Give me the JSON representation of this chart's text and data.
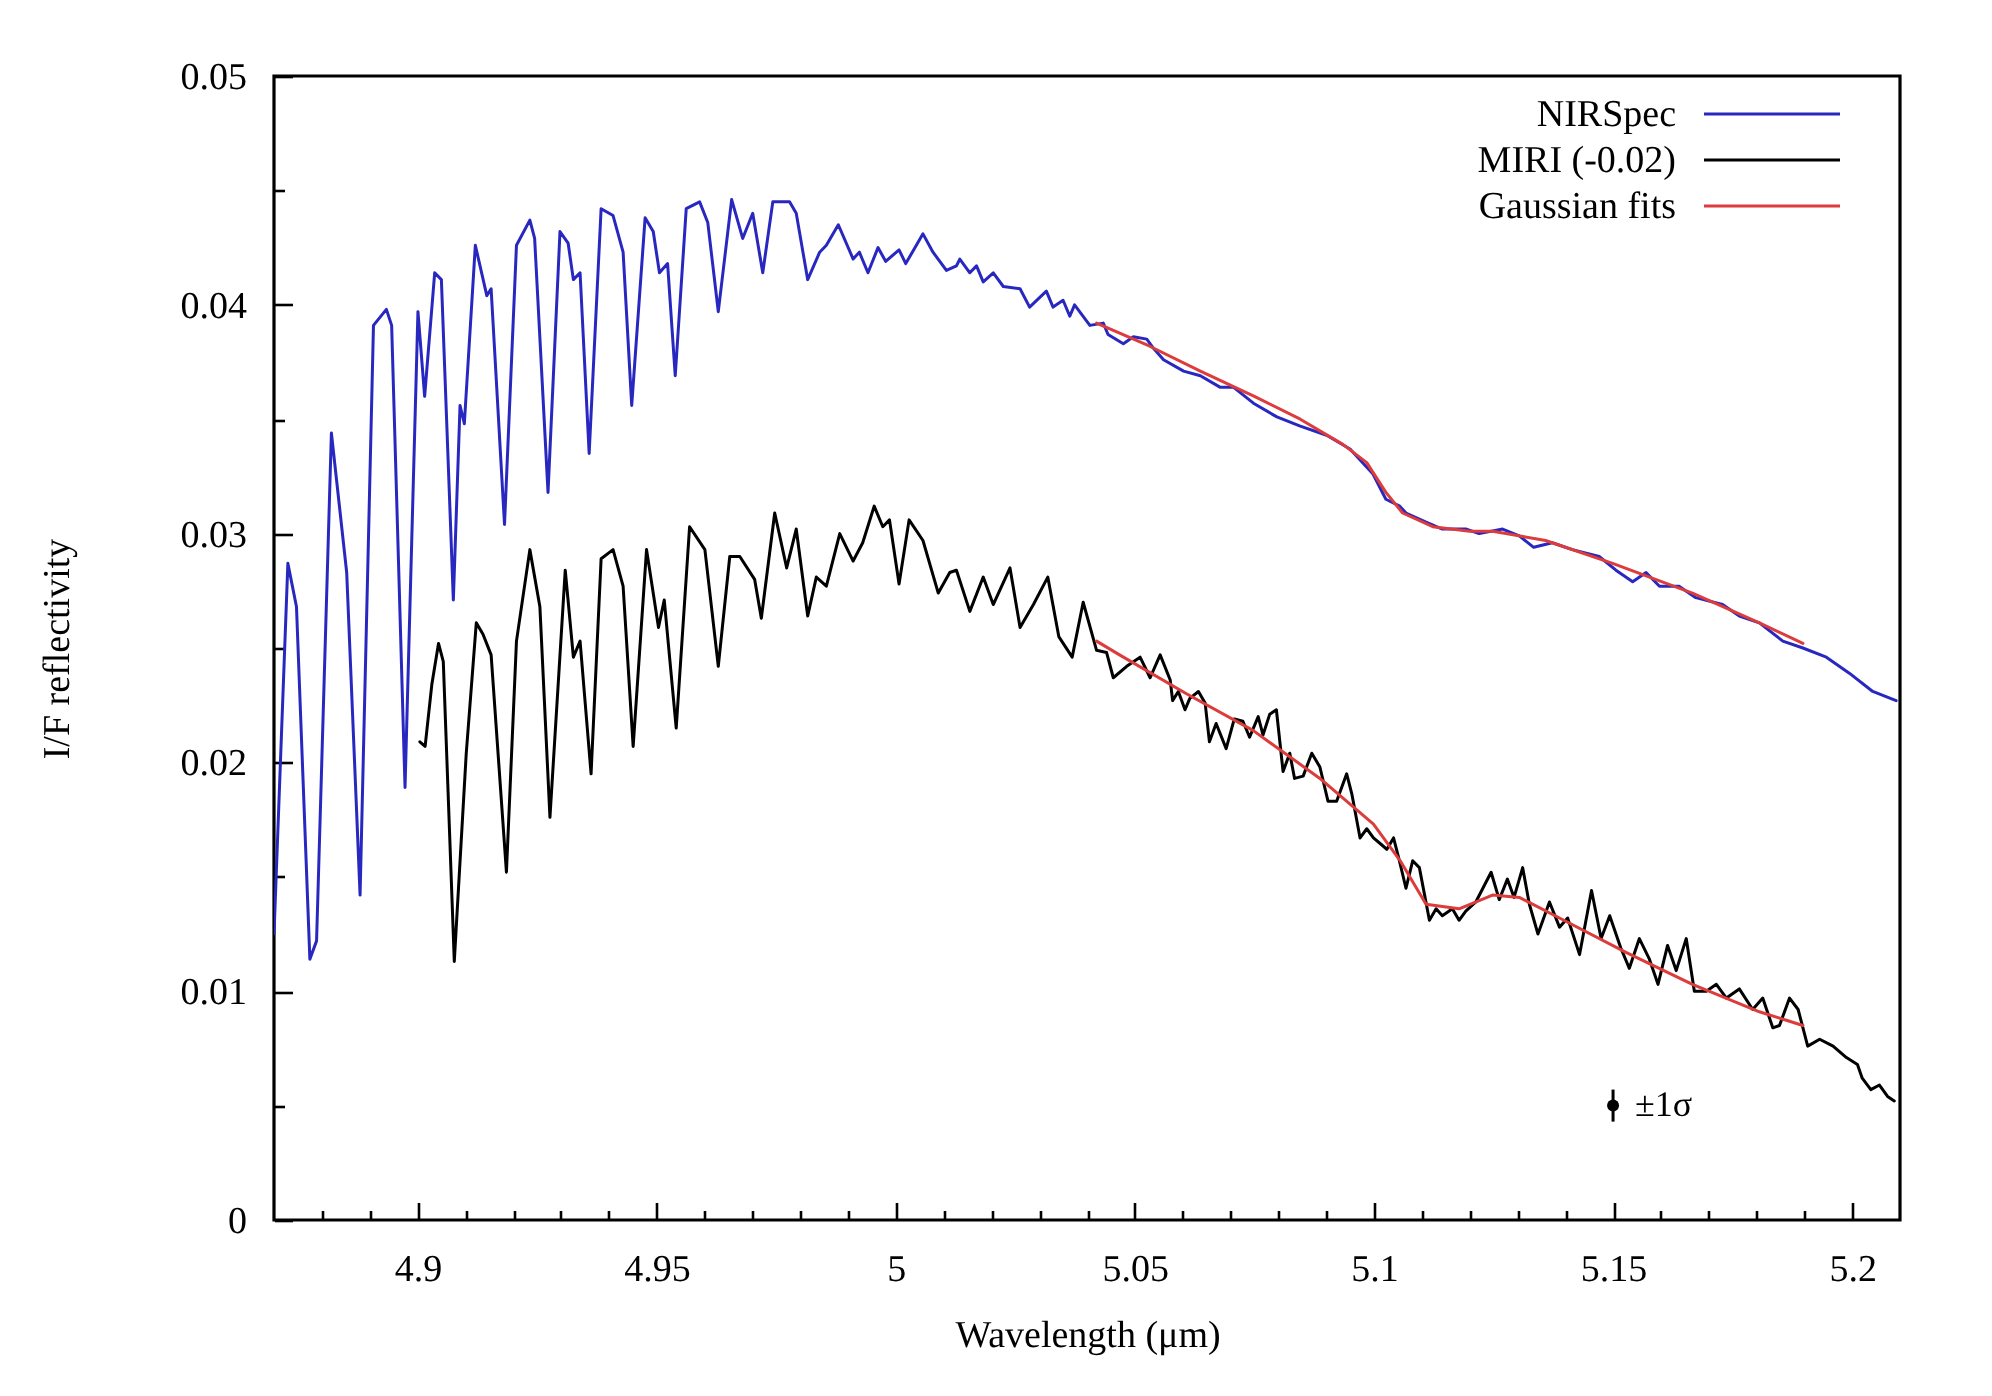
{
  "chart_data": {
    "type": "line",
    "xlabel": "Wavelength (μm)",
    "ylabel": "I/F reflectivity",
    "legend": "top right",
    "xlim": [
      4.87,
      5.21
    ],
    "ylim": [
      0,
      0.05
    ],
    "xticks": [
      {
        "value": 4.88,
        "label": null
      },
      {
        "value": 4.89,
        "label": null
      },
      4.9,
      {
        "value": 4.91,
        "label": null
      },
      {
        "value": 4.92,
        "label": null
      },
      {
        "value": 4.93,
        "label": null
      },
      {
        "value": 4.94,
        "label": null
      },
      4.95,
      {
        "value": 4.96,
        "label": null
      },
      {
        "value": 4.97,
        "label": null
      },
      {
        "value": 4.98,
        "label": null
      },
      {
        "value": 4.99,
        "label": null
      },
      5,
      {
        "value": 5.01,
        "label": null
      },
      {
        "value": 5.02,
        "label": null
      },
      {
        "value": 5.03,
        "label": null
      },
      {
        "value": 5.04,
        "label": null
      },
      5.05,
      {
        "value": 5.06,
        "label": null
      },
      {
        "value": 5.07,
        "label": null
      },
      {
        "value": 5.08,
        "label": null
      },
      {
        "value": 5.09,
        "label": null
      },
      5.1,
      {
        "value": 5.11,
        "label": null
      },
      {
        "value": 5.12,
        "label": null
      },
      {
        "value": 5.13,
        "label": null
      },
      {
        "value": 5.14,
        "label": null
      },
      5.15,
      {
        "value": 5.16,
        "label": null
      },
      {
        "value": 5.17,
        "label": null
      },
      {
        "value": 5.18,
        "label": null
      },
      {
        "value": 5.19,
        "label": null
      },
      5.2
    ],
    "yticks": [
      0,
      {
        "value": 0.005,
        "label": null
      },
      0.01,
      {
        "value": 0.015,
        "label": null
      },
      0.02,
      {
        "value": 0.025,
        "label": null
      },
      0.03,
      {
        "value": 0.035,
        "label": null
      },
      0.04,
      {
        "value": 0.045,
        "label": null
      },
      0.05
    ],
    "series": [
      {
        "name": "NIRSpec",
        "color": "#2828c0",
        "x": [
          4.87,
          4.8729,
          4.8747,
          4.8775,
          4.8789,
          4.882,
          4.8852,
          4.888,
          4.8908,
          4.8935,
          4.8946,
          4.8974,
          4.9001,
          4.9015,
          4.9036,
          4.905,
          4.9075,
          4.9089,
          4.9098,
          4.9121,
          4.9145,
          4.9154,
          4.9182,
          4.9207,
          4.9235,
          4.9245,
          4.9273,
          4.9298,
          4.9315,
          4.9326,
          4.934,
          4.9359,
          4.9384,
          4.9409,
          4.943,
          4.9448,
          4.9476,
          4.9493,
          4.9506,
          4.9523,
          4.9539,
          4.9562,
          4.959,
          4.9607,
          4.9629,
          4.9657,
          4.968,
          4.9701,
          4.9722,
          4.9743,
          4.9778,
          4.9792,
          4.9816,
          4.9841,
          4.9855,
          4.988,
          4.9911,
          4.9924,
          4.9942,
          4.9963,
          4.9979,
          5.0007,
          5.0021,
          5.0057,
          5.0078,
          5.0106,
          5.0127,
          5.0134,
          5.0155,
          5.0169,
          5.0183,
          5.0204,
          5.0225,
          5.026,
          5.028,
          5.0315,
          5.0329,
          5.035,
          5.0364,
          5.0374,
          5.0406,
          5.0434,
          5.0444,
          5.0476,
          5.0497,
          5.0525,
          5.0539,
          5.056,
          5.0602,
          5.0637,
          5.0678,
          5.0706,
          5.0748,
          5.0797,
          5.0846,
          5.0901,
          5.095,
          5.0998,
          5.1025,
          5.1054,
          5.1067,
          5.1109,
          5.1143,
          5.1192,
          5.122,
          5.1269,
          5.1304,
          5.1334,
          5.1373,
          5.1415,
          5.1471,
          5.1506,
          5.1541,
          5.1569,
          5.1597,
          5.1638,
          5.1673,
          5.1729,
          5.1764,
          5.1806,
          5.1855,
          5.1897,
          5.1946,
          5.1994,
          5.2043,
          5.2092
        ],
        "values": [
          0.0125,
          0.0287,
          0.0268,
          0.0114,
          0.0122,
          0.0344,
          0.0283,
          0.0142,
          0.0391,
          0.0398,
          0.0391,
          0.0189,
          0.0397,
          0.036,
          0.0414,
          0.0411,
          0.0271,
          0.0356,
          0.0348,
          0.0426,
          0.0404,
          0.0407,
          0.0304,
          0.0426,
          0.0437,
          0.0429,
          0.0318,
          0.0432,
          0.0427,
          0.0411,
          0.0414,
          0.0335,
          0.0442,
          0.0439,
          0.0423,
          0.0356,
          0.0438,
          0.0432,
          0.0414,
          0.0418,
          0.0369,
          0.0442,
          0.0445,
          0.0436,
          0.0397,
          0.0446,
          0.0429,
          0.044,
          0.0414,
          0.0445,
          0.0445,
          0.044,
          0.0411,
          0.0423,
          0.0426,
          0.0435,
          0.042,
          0.0423,
          0.0414,
          0.0425,
          0.0419,
          0.0424,
          0.0418,
          0.0431,
          0.0423,
          0.0415,
          0.0417,
          0.042,
          0.0414,
          0.0417,
          0.041,
          0.0414,
          0.0408,
          0.0407,
          0.0399,
          0.0406,
          0.0399,
          0.0402,
          0.0395,
          0.04,
          0.0391,
          0.0392,
          0.0387,
          0.0383,
          0.0386,
          0.0385,
          0.0381,
          0.0376,
          0.0371,
          0.0369,
          0.0364,
          0.0364,
          0.0357,
          0.0351,
          0.0347,
          0.0343,
          0.0337,
          0.0326,
          0.0315,
          0.0312,
          0.0309,
          0.0305,
          0.0302,
          0.0302,
          0.03,
          0.0302,
          0.0299,
          0.0294,
          0.0296,
          0.0293,
          0.029,
          0.0284,
          0.0279,
          0.0283,
          0.0277,
          0.0277,
          0.0272,
          0.0269,
          0.0264,
          0.0261,
          0.0253,
          0.025,
          0.0246,
          0.0239,
          0.0231,
          0.0227
        ]
      },
      {
        "name": "MIRI (-0.02)",
        "color": "#000000",
        "x": [
          4.9005,
          4.9016,
          4.903,
          4.9044,
          4.9054,
          4.9077,
          4.9102,
          4.9123,
          4.9137,
          4.9154,
          4.9186,
          4.9207,
          4.9235,
          4.9256,
          4.9277,
          4.9309,
          4.9326,
          4.934,
          4.9363,
          4.9384,
          4.9409,
          4.943,
          4.9451,
          4.9479,
          4.9504,
          4.9516,
          4.9541,
          4.9569,
          4.9601,
          4.9629,
          4.9653,
          4.9674,
          4.9705,
          4.9719,
          4.9747,
          4.9772,
          4.9792,
          4.9816,
          4.9834,
          4.9855,
          4.9883,
          4.9911,
          4.9931,
          4.9955,
          4.9973,
          4.9987,
          5.0007,
          5.0028,
          5.0057,
          5.0089,
          5.0113,
          5.0127,
          5.0155,
          5.0183,
          5.0204,
          5.0239,
          5.026,
          5.0288,
          5.0318,
          5.0341,
          5.0369,
          5.0392,
          5.042,
          5.0441,
          5.0455,
          5.0483,
          5.0511,
          5.0532,
          5.0553,
          5.0574,
          5.0579,
          5.0591,
          5.0605,
          5.0615,
          5.0633,
          5.0647,
          5.0656,
          5.067,
          5.0691,
          5.0708,
          5.0726,
          5.074,
          5.0758,
          5.0768,
          5.0782,
          5.0796,
          5.081,
          5.0824,
          5.0834,
          5.0852,
          5.087,
          5.0887,
          5.0904,
          5.0922,
          5.0943,
          5.0954,
          5.0971,
          5.0985,
          5.0999,
          5.1016,
          5.1027,
          5.1041,
          5.1052,
          5.1067,
          5.1081,
          5.1095,
          5.1116,
          5.113,
          5.1143,
          5.1164,
          5.1178,
          5.1192,
          5.1213,
          5.1245,
          5.1262,
          5.1279,
          5.1293,
          5.1311,
          5.1325,
          5.1343,
          5.1367,
          5.1388,
          5.1405,
          5.143,
          5.1455,
          5.1475,
          5.1493,
          5.1516,
          5.1534,
          5.1555,
          5.1576,
          5.1594,
          5.1614,
          5.1632,
          5.1653,
          5.167,
          5.1695,
          5.1716,
          5.1737,
          5.1764,
          5.1792,
          5.1813,
          5.1834,
          5.1848,
          5.1869,
          5.1887,
          5.1907,
          5.1932,
          5.196,
          5.1988,
          5.2011,
          5.2021,
          5.2039,
          5.2057,
          5.2074,
          5.2088
        ],
        "values": [
          0.0209,
          0.0207,
          0.0234,
          0.0252,
          0.0244,
          0.0113,
          0.0204,
          0.0261,
          0.0256,
          0.0247,
          0.0152,
          0.0253,
          0.0293,
          0.0268,
          0.0176,
          0.0284,
          0.0246,
          0.0253,
          0.0195,
          0.0289,
          0.0293,
          0.0277,
          0.0207,
          0.0293,
          0.0259,
          0.0271,
          0.0215,
          0.0303,
          0.0293,
          0.0242,
          0.029,
          0.029,
          0.028,
          0.0263,
          0.0309,
          0.0285,
          0.0302,
          0.0264,
          0.0281,
          0.0277,
          0.03,
          0.0288,
          0.0296,
          0.0312,
          0.0303,
          0.0306,
          0.0278,
          0.0306,
          0.0297,
          0.0274,
          0.0283,
          0.0284,
          0.0266,
          0.0281,
          0.0269,
          0.0285,
          0.0259,
          0.0269,
          0.0281,
          0.0255,
          0.0246,
          0.027,
          0.0249,
          0.0248,
          0.0237,
          0.0242,
          0.0246,
          0.0237,
          0.0247,
          0.0236,
          0.0227,
          0.0231,
          0.0223,
          0.0228,
          0.0231,
          0.0226,
          0.0209,
          0.0217,
          0.0206,
          0.0219,
          0.0218,
          0.0211,
          0.022,
          0.0212,
          0.0221,
          0.0223,
          0.0196,
          0.0204,
          0.0193,
          0.0194,
          0.0204,
          0.0198,
          0.0183,
          0.0183,
          0.0195,
          0.0186,
          0.0167,
          0.0171,
          0.0167,
          0.0164,
          0.0162,
          0.0167,
          0.0158,
          0.0145,
          0.0157,
          0.0154,
          0.0131,
          0.0136,
          0.0133,
          0.0136,
          0.0131,
          0.0135,
          0.0139,
          0.0152,
          0.014,
          0.0149,
          0.0141,
          0.0154,
          0.0138,
          0.0125,
          0.0139,
          0.0128,
          0.0132,
          0.0116,
          0.0144,
          0.0123,
          0.0133,
          0.0119,
          0.011,
          0.0123,
          0.0114,
          0.0103,
          0.012,
          0.0109,
          0.0123,
          0.01,
          0.01,
          0.0103,
          0.0097,
          0.0101,
          0.0092,
          0.0097,
          0.0084,
          0.0085,
          0.0097,
          0.0092,
          0.0076,
          0.0079,
          0.0076,
          0.0071,
          0.0068,
          0.0062,
          0.0057,
          0.0059,
          0.0054,
          0.0052
        ]
      },
      {
        "name": "Gaussian fits",
        "color": "#dc3c3c",
        "x": [
          5.042,
          5.053,
          5.0637,
          5.075,
          5.0846,
          5.0935,
          5.0985,
          5.1025,
          5.106,
          5.1123,
          5.12,
          5.1248,
          5.1359,
          5.1499,
          5.1666,
          5.1806,
          5.1897
        ],
        "values": [
          0.0392,
          0.0382,
          0.0371,
          0.036,
          0.035,
          0.0339,
          0.0331,
          0.0318,
          0.0309,
          0.0303,
          0.0301,
          0.0301,
          0.0297,
          0.0287,
          0.0274,
          0.0261,
          0.0252
        ]
      },
      {
        "color": "#dc3c3c",
        "x": [
          5.042,
          5.0468,
          5.0608,
          5.0747,
          5.0887,
          5.0999,
          5.1055,
          5.1109,
          5.1178,
          5.1248,
          5.1304,
          5.1388,
          5.1527,
          5.1666,
          5.1806,
          5.1897
        ],
        "values": [
          0.0253,
          0.0247,
          0.023,
          0.0214,
          0.0193,
          0.0173,
          0.0157,
          0.0138,
          0.0136,
          0.0142,
          0.0141,
          0.0132,
          0.0117,
          0.0103,
          0.0091,
          0.0085
        ]
      },
      {
        "type": "scatter",
        "color": "#000000",
        "marker": "circle",
        "x": [
          5.15
        ],
        "values": [
          0.005
        ],
        "errors": [
          0.0007
        ]
      }
    ],
    "annotations": [
      {
        "text": "±1σ",
        "x": 5.15,
        "y": 0.005
      }
    ]
  }
}
